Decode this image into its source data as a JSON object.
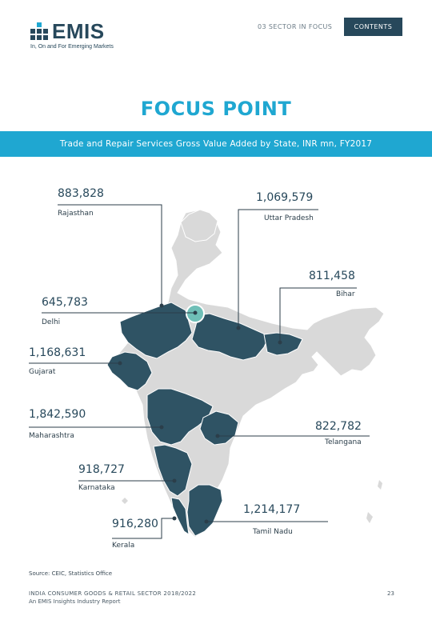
{
  "header": {
    "logo_text": "EMIS",
    "logo_tagline": "In, On and For Emerging Markets",
    "section_label": "03 SECTOR IN FOCUS",
    "contents_button": "CONTENTS"
  },
  "page_title": "FOCUS POINT",
  "colors": {
    "accent_blue": "#1fa7d1",
    "highlight_state": "#2f5364",
    "other_state": "#d9d9d9",
    "delhi_marker": "#6fbfb7"
  },
  "chart_data": {
    "type": "map",
    "title": "Trade and Repair Services Gross Value Added by State, INR mn, FY2017",
    "states": [
      {
        "name": "Rajasthan",
        "value": "883,828"
      },
      {
        "name": "Uttar Pradesh",
        "value": "1,069,579"
      },
      {
        "name": "Bihar",
        "value": "811,458"
      },
      {
        "name": "Delhi",
        "value": "645,783"
      },
      {
        "name": "Gujarat",
        "value": "1,168,631"
      },
      {
        "name": "Maharashtra",
        "value": "1,842,590"
      },
      {
        "name": "Telangana",
        "value": "822,782"
      },
      {
        "name": "Karnataka",
        "value": "918,727"
      },
      {
        "name": "Tamil Nadu",
        "value": "1,214,177"
      },
      {
        "name": "Kerala",
        "value": "916,280"
      }
    ]
  },
  "source": "Source: CEIC, Statistics Office",
  "footer": {
    "line1": "INDIA CONSUMER GOODS & RETAIL SECTOR 2018/2022",
    "line2": "An EMIS Insights Industry Report",
    "page_number": "23"
  }
}
